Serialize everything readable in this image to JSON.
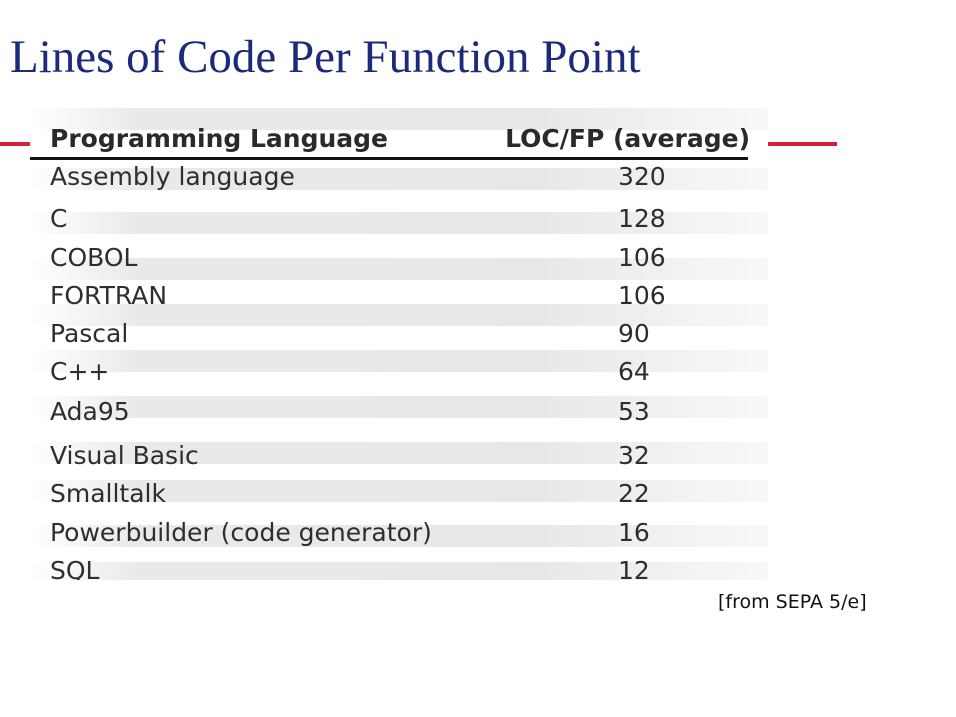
{
  "slide": {
    "title": "Lines of Code Per Function Point",
    "source": "[from SEPA 5/e]",
    "accent_color": "#d8203a",
    "title_color": "#1b2a7a"
  },
  "table": {
    "headers": {
      "language": "Programming Language",
      "loc_fp": "LOC/FP (average)"
    },
    "rows": [
      {
        "language": "Assembly language",
        "loc_fp": "320"
      },
      {
        "language": "C",
        "loc_fp": "128"
      },
      {
        "language": "COBOL",
        "loc_fp": "106"
      },
      {
        "language": "FORTRAN",
        "loc_fp": "106"
      },
      {
        "language": "Pascal",
        "loc_fp": "90"
      },
      {
        "language": "C++",
        "loc_fp": "64"
      },
      {
        "language": "Ada95",
        "loc_fp": "53"
      },
      {
        "language": "Visual Basic",
        "loc_fp": "32"
      },
      {
        "language": "Smalltalk",
        "loc_fp": "22"
      },
      {
        "language": "Powerbuilder (code generator)",
        "loc_fp": "16"
      },
      {
        "language": "SQL",
        "loc_fp": "12"
      }
    ]
  }
}
